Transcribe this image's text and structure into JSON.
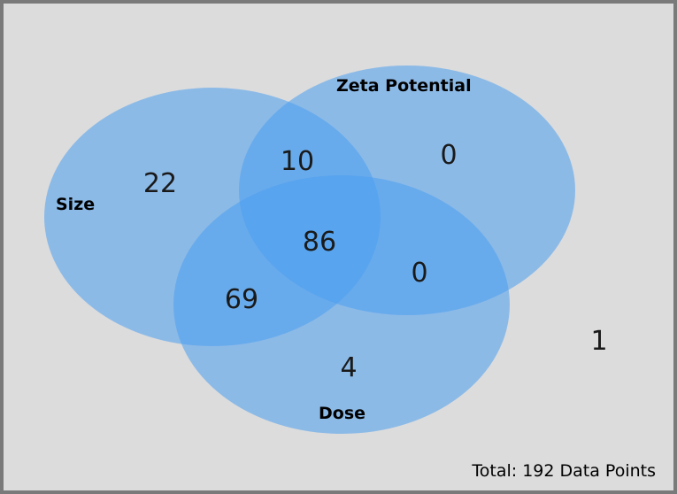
{
  "sets": {
    "size": {
      "label": "Size"
    },
    "zeta": {
      "label": "Zeta Potential"
    },
    "dose": {
      "label": "Dose"
    }
  },
  "regions": {
    "size_only": "22",
    "zeta_only": "0",
    "dose_only": "4",
    "size_zeta": "10",
    "size_dose": "69",
    "zeta_dose": "0",
    "all_three": "86",
    "none": "1"
  },
  "total_text": "Total: 192 Data Points",
  "colors": {
    "background": "#dcdcdc",
    "border": "#7a7a7a",
    "circle_fill": "#4a9ff0"
  }
}
